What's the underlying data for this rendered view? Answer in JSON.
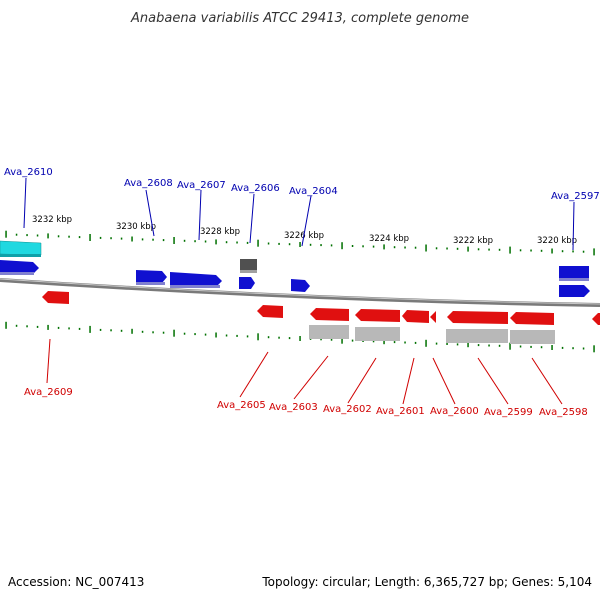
{
  "title": "Anabaena variabilis ATCC 29413, complete genome",
  "footer": {
    "accession": "Accession: NC_007413",
    "summary": "Topology: circular; Length: 6,365,727 bp; Genes: 5,104"
  },
  "colors": {
    "forward_gene": "#1010d0",
    "reverse_gene": "#e01010",
    "special_gene": "#20d8e0",
    "pseudo_gene": "#505050",
    "feature_gray": "#b8b8b8",
    "backbone": "#808080",
    "tick": "#007000",
    "label_top": "#0000b0",
    "label_bottom": "#d00000"
  },
  "kbp_labels": [
    "3232 kbp",
    "3230 kbp",
    "3228 kbp",
    "3226 kbp",
    "3224 kbp",
    "3222 kbp",
    "3220 kbp"
  ],
  "top_labels": [
    "Ava_2610",
    "Ava_2608",
    "Ava_2607",
    "Ava_2606",
    "Ava_2604",
    "Ava_2597"
  ],
  "bottom_labels": [
    "Ava_2609",
    "Ava_2605",
    "Ava_2603",
    "Ava_2602",
    "Ava_2601",
    "Ava_2600",
    "Ava_2599",
    "Ava_2598"
  ]
}
